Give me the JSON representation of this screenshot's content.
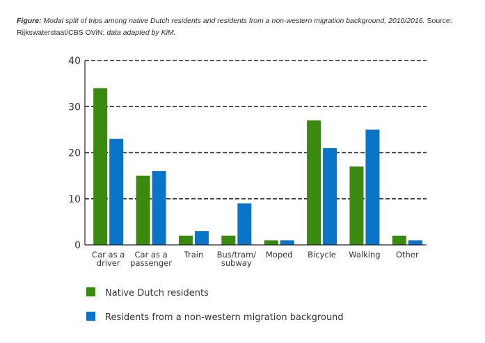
{
  "caption": {
    "label": "Figure:",
    "text_italic": " Modal split of trips among native Dutch residents and residents from a non-western migration background, 2010/2016.",
    "source": " Source: Rijkswaterstaat/CBS OViN;",
    "note": " data adapted by KiM."
  },
  "chart_data": {
    "type": "bar",
    "categories": [
      [
        "Car as a",
        "driver"
      ],
      [
        "Car as a",
        "passenger"
      ],
      [
        "Train"
      ],
      [
        "Bus/tram/",
        "subway"
      ],
      [
        "Moped"
      ],
      [
        "Bicycle"
      ],
      [
        "Walking"
      ],
      [
        "Other"
      ]
    ],
    "series": [
      {
        "name": "Native Dutch residents",
        "color": "#3a8a10",
        "values": [
          34,
          15,
          2,
          2,
          1,
          27,
          17,
          2
        ]
      },
      {
        "name": "Residents from a non-western migration background",
        "color": "#0a74c8",
        "values": [
          23,
          16,
          3,
          9,
          1,
          21,
          25,
          1
        ]
      }
    ],
    "ylim": [
      0,
      40
    ],
    "yticks": [
      0,
      10,
      20,
      30,
      40
    ],
    "grid": "dashed horizontal",
    "legend": "bottom-left"
  }
}
